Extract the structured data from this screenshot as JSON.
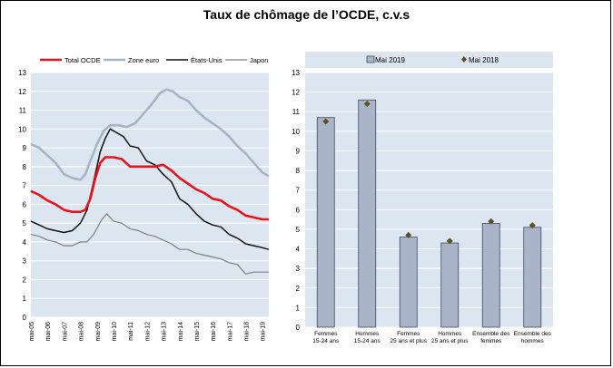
{
  "figure": {
    "title": "Taux de chômage de l’OCDE, c.v.s"
  },
  "colors": {
    "plot_bg": "#dce6f0",
    "grid": "#ffffff",
    "total_ocde": "#e8141b",
    "zone_euro": "#a7b3c6",
    "etats_unis": "#111111",
    "japon": "#7f7f7f",
    "bar_fill": "#a9b4c8",
    "bar_stroke": "#3b4a66",
    "marker": "#5f4f22"
  },
  "chart_data": [
    {
      "type": "line",
      "ylim": [
        0,
        13
      ],
      "yticks": [
        0,
        1,
        2,
        3,
        4,
        5,
        6,
        7,
        8,
        9,
        10,
        11,
        12,
        13
      ],
      "xlim": [
        2005.0,
        2019.4
      ],
      "grid": true,
      "legend_position": "top",
      "tick_labels": [
        {
          "x": 2005,
          "label": "mai-05"
        },
        {
          "x": 2006,
          "label": "mai-06"
        },
        {
          "x": 2007,
          "label": "mai-07"
        },
        {
          "x": 2008,
          "label": "mai-08"
        },
        {
          "x": 2009,
          "label": "mai-09"
        },
        {
          "x": 2010,
          "label": "mai-10"
        },
        {
          "x": 2011,
          "label": "mai-11"
        },
        {
          "x": 2012,
          "label": "mai-12"
        },
        {
          "x": 2013,
          "label": "mai-13"
        },
        {
          "x": 2014,
          "label": "mai-14"
        },
        {
          "x": 2015,
          "label": "mai-15"
        },
        {
          "x": 2016,
          "label": "mai-16"
        },
        {
          "x": 2017,
          "label": "mai-17"
        },
        {
          "x": 2018,
          "label": "mai-18"
        },
        {
          "x": 2019,
          "label": "mai-19"
        }
      ],
      "series": [
        {
          "name": "Total OCDE",
          "color_key": "total_ocde",
          "width": 2.6,
          "points": [
            [
              2005,
              6.7
            ],
            [
              2005.5,
              6.5
            ],
            [
              2006,
              6.2
            ],
            [
              2006.5,
              6.0
            ],
            [
              2007,
              5.7
            ],
            [
              2007.5,
              5.6
            ],
            [
              2008,
              5.6
            ],
            [
              2008.3,
              5.7
            ],
            [
              2008.6,
              6.3
            ],
            [
              2008.9,
              7.4
            ],
            [
              2009.2,
              8.2
            ],
            [
              2009.5,
              8.5
            ],
            [
              2010,
              8.5
            ],
            [
              2010.5,
              8.4
            ],
            [
              2011,
              8.0
            ],
            [
              2011.5,
              8.0
            ],
            [
              2012,
              8.0
            ],
            [
              2012.5,
              8.0
            ],
            [
              2013,
              8.1
            ],
            [
              2013.5,
              7.8
            ],
            [
              2014,
              7.4
            ],
            [
              2014.5,
              7.1
            ],
            [
              2015,
              6.8
            ],
            [
              2015.5,
              6.6
            ],
            [
              2016,
              6.3
            ],
            [
              2016.5,
              6.2
            ],
            [
              2017,
              5.9
            ],
            [
              2017.5,
              5.7
            ],
            [
              2018,
              5.4
            ],
            [
              2018.5,
              5.3
            ],
            [
              2019,
              5.2
            ],
            [
              2019.4,
              5.2
            ]
          ]
        },
        {
          "name": "Zone euro",
          "color_key": "zone_euro",
          "width": 2.6,
          "points": [
            [
              2005,
              9.2
            ],
            [
              2005.5,
              9.0
            ],
            [
              2006,
              8.6
            ],
            [
              2006.5,
              8.2
            ],
            [
              2007,
              7.6
            ],
            [
              2007.5,
              7.4
            ],
            [
              2008,
              7.3
            ],
            [
              2008.3,
              7.6
            ],
            [
              2008.6,
              8.3
            ],
            [
              2009,
              9.2
            ],
            [
              2009.4,
              9.9
            ],
            [
              2009.8,
              10.2
            ],
            [
              2010.3,
              10.2
            ],
            [
              2010.8,
              10.1
            ],
            [
              2011.3,
              10.3
            ],
            [
              2011.8,
              10.8
            ],
            [
              2012.3,
              11.3
            ],
            [
              2012.8,
              11.9
            ],
            [
              2013.2,
              12.1
            ],
            [
              2013.6,
              12.0
            ],
            [
              2014,
              11.7
            ],
            [
              2014.5,
              11.5
            ],
            [
              2015,
              11.0
            ],
            [
              2015.5,
              10.6
            ],
            [
              2016,
              10.3
            ],
            [
              2016.5,
              10.0
            ],
            [
              2017,
              9.6
            ],
            [
              2017.5,
              9.1
            ],
            [
              2018,
              8.7
            ],
            [
              2018.5,
              8.2
            ],
            [
              2019,
              7.7
            ],
            [
              2019.4,
              7.5
            ]
          ]
        },
        {
          "name": "États-Unis",
          "color_key": "etats_unis",
          "width": 1.5,
          "points": [
            [
              2005,
              5.1
            ],
            [
              2005.5,
              4.9
            ],
            [
              2006,
              4.7
            ],
            [
              2006.5,
              4.6
            ],
            [
              2007,
              4.5
            ],
            [
              2007.5,
              4.6
            ],
            [
              2008,
              5.0
            ],
            [
              2008.4,
              5.7
            ],
            [
              2008.8,
              7.2
            ],
            [
              2009.2,
              8.8
            ],
            [
              2009.5,
              9.5
            ],
            [
              2009.8,
              10.0
            ],
            [
              2010.2,
              9.8
            ],
            [
              2010.6,
              9.6
            ],
            [
              2011,
              9.1
            ],
            [
              2011.5,
              9.0
            ],
            [
              2012,
              8.3
            ],
            [
              2012.5,
              8.1
            ],
            [
              2013,
              7.6
            ],
            [
              2013.5,
              7.2
            ],
            [
              2014,
              6.3
            ],
            [
              2014.5,
              6.0
            ],
            [
              2015,
              5.5
            ],
            [
              2015.5,
              5.1
            ],
            [
              2016,
              4.9
            ],
            [
              2016.5,
              4.8
            ],
            [
              2017,
              4.4
            ],
            [
              2017.5,
              4.2
            ],
            [
              2018,
              3.9
            ],
            [
              2018.5,
              3.8
            ],
            [
              2019,
              3.7
            ],
            [
              2019.4,
              3.6
            ]
          ]
        },
        {
          "name": "Japon",
          "color_key": "japon",
          "width": 1.2,
          "points": [
            [
              2005,
              4.4
            ],
            [
              2005.5,
              4.3
            ],
            [
              2006,
              4.1
            ],
            [
              2006.5,
              4.0
            ],
            [
              2007,
              3.8
            ],
            [
              2007.5,
              3.8
            ],
            [
              2008,
              4.0
            ],
            [
              2008.4,
              4.0
            ],
            [
              2008.8,
              4.4
            ],
            [
              2009.3,
              5.2
            ],
            [
              2009.6,
              5.5
            ],
            [
              2010,
              5.1
            ],
            [
              2010.5,
              5.0
            ],
            [
              2011,
              4.7
            ],
            [
              2011.5,
              4.6
            ],
            [
              2012,
              4.4
            ],
            [
              2012.5,
              4.3
            ],
            [
              2013,
              4.1
            ],
            [
              2013.5,
              3.9
            ],
            [
              2014,
              3.6
            ],
            [
              2014.5,
              3.6
            ],
            [
              2015,
              3.4
            ],
            [
              2015.5,
              3.3
            ],
            [
              2016,
              3.2
            ],
            [
              2016.5,
              3.1
            ],
            [
              2017,
              2.9
            ],
            [
              2017.5,
              2.8
            ],
            [
              2018,
              2.3
            ],
            [
              2018.5,
              2.4
            ],
            [
              2019,
              2.4
            ],
            [
              2019.4,
              2.4
            ]
          ]
        }
      ]
    },
    {
      "type": "bar",
      "ylim": [
        0,
        13
      ],
      "yticks": [
        0,
        1,
        2,
        3,
        4,
        5,
        6,
        7,
        8,
        9,
        10,
        11,
        12,
        13
      ],
      "grid": true,
      "legend_position": "top",
      "categories": [
        [
          "Femmes",
          "15-24 ans"
        ],
        [
          "Hommes",
          "15-24 ans"
        ],
        [
          "Femmes",
          "25 ans et plus"
        ],
        [
          "Hommes",
          "25 ans et plus"
        ],
        [
          "Ensemble des",
          "femmes"
        ],
        [
          "Ensemble des",
          "hommes"
        ]
      ],
      "series": [
        {
          "name": "Mai 2019",
          "kind": "bar",
          "values": [
            10.7,
            11.6,
            4.6,
            4.3,
            5.3,
            5.1
          ]
        },
        {
          "name": "Mai 2018",
          "kind": "marker",
          "values": [
            10.5,
            11.4,
            4.7,
            4.4,
            5.4,
            5.2
          ]
        }
      ]
    }
  ]
}
